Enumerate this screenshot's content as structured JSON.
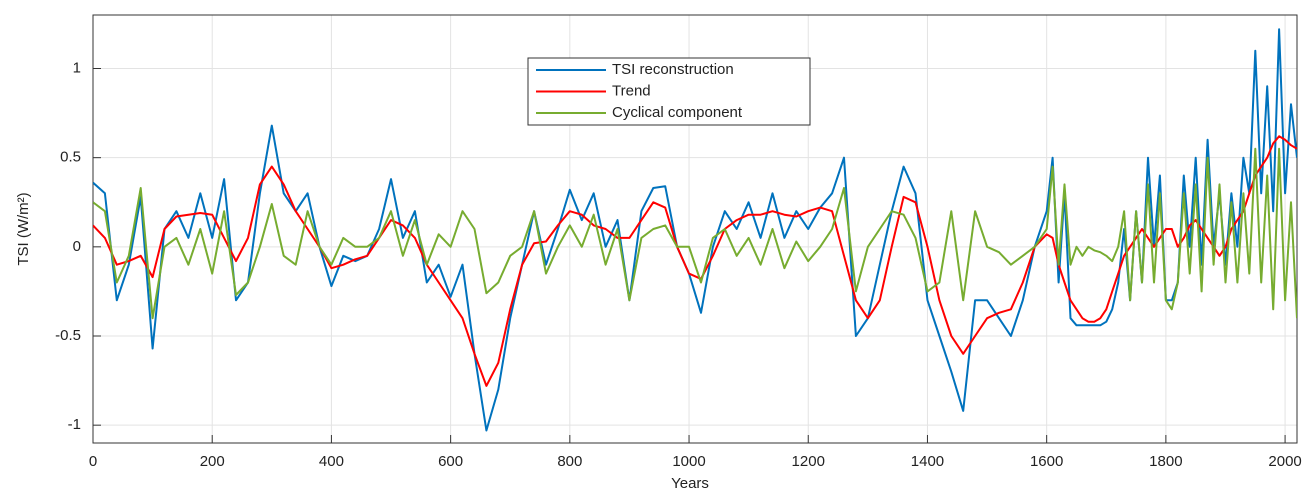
{
  "chart_data": {
    "type": "line",
    "xlabel": "Years",
    "ylabel": "TSI (W/m²)",
    "x": [
      0,
      20,
      40,
      60,
      80,
      100,
      120,
      140,
      160,
      180,
      200,
      220,
      240,
      260,
      280,
      300,
      320,
      340,
      360,
      380,
      400,
      420,
      440,
      460,
      480,
      500,
      520,
      540,
      560,
      580,
      600,
      620,
      640,
      660,
      680,
      700,
      720,
      740,
      760,
      780,
      800,
      820,
      840,
      860,
      880,
      900,
      920,
      940,
      960,
      980,
      1000,
      1020,
      1040,
      1060,
      1080,
      1100,
      1120,
      1140,
      1160,
      1180,
      1200,
      1220,
      1240,
      1260,
      1280,
      1300,
      1320,
      1340,
      1360,
      1380,
      1400,
      1420,
      1440,
      1460,
      1480,
      1500,
      1520,
      1540,
      1560,
      1580,
      1600,
      1610,
      1620,
      1630,
      1640,
      1650,
      1660,
      1670,
      1680,
      1690,
      1700,
      1710,
      1720,
      1730,
      1740,
      1750,
      1760,
      1770,
      1780,
      1790,
      1800,
      1810,
      1820,
      1830,
      1840,
      1850,
      1860,
      1870,
      1880,
      1890,
      1900,
      1910,
      1920,
      1930,
      1940,
      1950,
      1960,
      1970,
      1980,
      1990,
      2000,
      2010,
      2020
    ],
    "series": [
      {
        "name": "TSI reconstruction",
        "color": "#0072BD",
        "values": [
          0.36,
          0.3,
          -0.3,
          -0.1,
          0.28,
          -0.57,
          0.1,
          0.2,
          0.05,
          0.3,
          0.05,
          0.38,
          -0.3,
          -0.2,
          0.3,
          0.68,
          0.3,
          0.2,
          0.3,
          0.0,
          -0.22,
          -0.05,
          -0.08,
          -0.05,
          0.1,
          0.38,
          0.05,
          0.2,
          -0.2,
          -0.1,
          -0.28,
          -0.1,
          -0.6,
          -1.03,
          -0.8,
          -0.4,
          -0.1,
          0.2,
          -0.1,
          0.1,
          0.32,
          0.15,
          0.3,
          0.0,
          0.15,
          -0.3,
          0.2,
          0.33,
          0.34,
          0.0,
          -0.15,
          -0.37,
          0.0,
          0.2,
          0.1,
          0.25,
          0.05,
          0.3,
          0.05,
          0.2,
          0.1,
          0.22,
          0.3,
          0.5,
          -0.5,
          -0.4,
          -0.1,
          0.2,
          0.45,
          0.3,
          -0.3,
          -0.5,
          -0.7,
          -0.92,
          -0.3,
          -0.3,
          -0.4,
          -0.5,
          -0.3,
          0.0,
          0.2,
          0.5,
          -0.2,
          0.3,
          -0.4,
          -0.44,
          -0.44,
          -0.44,
          -0.44,
          -0.44,
          -0.42,
          -0.35,
          -0.2,
          0.1,
          -0.3,
          0.2,
          -0.2,
          0.5,
          0.0,
          0.4,
          -0.3,
          -0.3,
          -0.2,
          0.4,
          0.0,
          0.5,
          -0.1,
          0.6,
          0.0,
          0.3,
          -0.1,
          0.3,
          0.0,
          0.5,
          0.3,
          1.1,
          0.3,
          0.9,
          0.2,
          1.22,
          0.3,
          0.8,
          0.5
        ]
      },
      {
        "name": "Trend",
        "color": "#FF0000",
        "values": [
          0.12,
          0.05,
          -0.1,
          -0.08,
          -0.05,
          -0.17,
          0.1,
          0.17,
          0.18,
          0.19,
          0.18,
          0.05,
          -0.08,
          0.05,
          0.35,
          0.45,
          0.35,
          0.2,
          0.1,
          0.0,
          -0.12,
          -0.1,
          -0.07,
          -0.05,
          0.05,
          0.15,
          0.12,
          0.05,
          -0.1,
          -0.2,
          -0.3,
          -0.4,
          -0.6,
          -0.78,
          -0.65,
          -0.35,
          -0.1,
          0.02,
          0.03,
          0.12,
          0.2,
          0.18,
          0.12,
          0.1,
          0.05,
          0.05,
          0.15,
          0.25,
          0.22,
          0.0,
          -0.15,
          -0.18,
          -0.05,
          0.1,
          0.15,
          0.18,
          0.18,
          0.2,
          0.18,
          0.17,
          0.2,
          0.22,
          0.2,
          -0.05,
          -0.3,
          -0.4,
          -0.3,
          0.0,
          0.28,
          0.25,
          0.0,
          -0.3,
          -0.5,
          -0.6,
          -0.5,
          -0.4,
          -0.37,
          -0.35,
          -0.2,
          0.0,
          0.07,
          0.05,
          -0.1,
          -0.2,
          -0.3,
          -0.35,
          -0.4,
          -0.42,
          -0.42,
          -0.4,
          -0.35,
          -0.25,
          -0.15,
          -0.05,
          0.0,
          0.05,
          0.1,
          0.05,
          0.0,
          0.05,
          0.1,
          0.1,
          0.0,
          0.05,
          0.12,
          0.15,
          0.1,
          0.05,
          0.0,
          -0.05,
          0.0,
          0.1,
          0.15,
          0.2,
          0.3,
          0.4,
          0.45,
          0.5,
          0.58,
          0.62,
          0.6,
          0.57,
          0.55
        ]
      },
      {
        "name": "Cyclical component",
        "color": "#77AC30",
        "values": [
          0.25,
          0.2,
          -0.2,
          -0.05,
          0.33,
          -0.4,
          0.0,
          0.05,
          -0.1,
          0.1,
          -0.15,
          0.2,
          -0.27,
          -0.2,
          0.0,
          0.24,
          -0.05,
          -0.1,
          0.2,
          0.0,
          -0.1,
          0.05,
          0.0,
          0.0,
          0.05,
          0.2,
          -0.05,
          0.15,
          -0.1,
          0.07,
          0.0,
          0.2,
          0.1,
          -0.26,
          -0.2,
          -0.05,
          0.0,
          0.2,
          -0.15,
          0.0,
          0.12,
          0.0,
          0.18,
          -0.1,
          0.1,
          -0.3,
          0.05,
          0.1,
          0.12,
          0.0,
          0.0,
          -0.2,
          0.05,
          0.1,
          -0.05,
          0.05,
          -0.1,
          0.1,
          -0.12,
          0.03,
          -0.08,
          0.0,
          0.1,
          0.33,
          -0.25,
          0.0,
          0.1,
          0.2,
          0.18,
          0.05,
          -0.25,
          -0.2,
          0.2,
          -0.3,
          0.2,
          0.0,
          -0.03,
          -0.1,
          -0.05,
          0.0,
          0.1,
          0.45,
          -0.1,
          0.35,
          -0.1,
          0.0,
          -0.05,
          0.0,
          -0.02,
          -0.03,
          -0.05,
          -0.08,
          0.0,
          0.2,
          -0.3,
          0.2,
          -0.2,
          0.35,
          -0.2,
          0.3,
          -0.3,
          -0.35,
          -0.2,
          0.3,
          -0.15,
          0.35,
          -0.25,
          0.5,
          -0.1,
          0.35,
          -0.2,
          0.25,
          -0.2,
          0.3,
          -0.15,
          0.55,
          -0.2,
          0.4,
          -0.35,
          0.55,
          -0.3,
          0.25,
          -0.4
        ]
      }
    ],
    "xlim": [
      0,
      2020
    ],
    "xticks": [
      0,
      200,
      400,
      600,
      800,
      1000,
      1200,
      1400,
      1600,
      1800,
      2000
    ],
    "ylim": [
      -1.1,
      1.3
    ],
    "yticks": [
      -1,
      -0.5,
      0,
      0.5,
      1
    ],
    "grid": true,
    "legend": "top"
  }
}
